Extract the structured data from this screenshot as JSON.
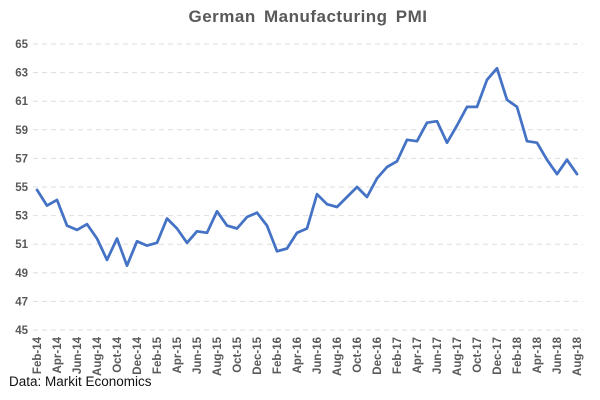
{
  "header": {
    "title": "German Manufacturing PMI"
  },
  "footer": {
    "source_note": "Data: Markit Economics"
  },
  "chart_data": {
    "type": "line",
    "title": "German Manufacturing PMI",
    "xlabel": "",
    "ylabel": "",
    "x": [
      "Feb-14",
      "Mar-14",
      "Apr-14",
      "May-14",
      "Jun-14",
      "Jul-14",
      "Aug-14",
      "Sep-14",
      "Oct-14",
      "Nov-14",
      "Dec-14",
      "Jan-15",
      "Feb-15",
      "Mar-15",
      "Apr-15",
      "May-15",
      "Jun-15",
      "Jul-15",
      "Aug-15",
      "Sep-15",
      "Oct-15",
      "Nov-15",
      "Dec-15",
      "Jan-16",
      "Feb-16",
      "Mar-16",
      "Apr-16",
      "May-16",
      "Jun-16",
      "Jul-16",
      "Aug-16",
      "Sep-16",
      "Oct-16",
      "Nov-16",
      "Dec-16",
      "Jan-17",
      "Feb-17",
      "Mar-17",
      "Apr-17",
      "May-17",
      "Jun-17",
      "Jul-17",
      "Aug-17",
      "Sep-17",
      "Oct-17",
      "Nov-17",
      "Dec-17",
      "Jan-18",
      "Feb-18",
      "Mar-18",
      "Apr-18",
      "May-18",
      "Jun-18",
      "Jul-18",
      "Aug-18"
    ],
    "series": [
      {
        "name": "German Manufacturing PMI",
        "values": [
          54.8,
          53.7,
          54.1,
          52.3,
          52.0,
          52.4,
          51.4,
          49.9,
          51.4,
          49.5,
          51.2,
          50.9,
          51.1,
          52.8,
          52.1,
          51.1,
          51.9,
          51.8,
          53.3,
          52.3,
          52.1,
          52.9,
          53.2,
          52.3,
          50.5,
          50.7,
          51.8,
          52.1,
          54.5,
          53.8,
          53.6,
          54.3,
          55.0,
          54.3,
          55.6,
          56.4,
          56.8,
          58.3,
          58.2,
          59.5,
          59.6,
          58.1,
          59.3,
          60.6,
          60.6,
          62.5,
          63.3,
          61.1,
          60.6,
          58.2,
          58.1,
          56.9,
          55.9,
          56.9,
          55.9
        ]
      }
    ],
    "ylim": [
      45,
      65
    ],
    "yticks": [
      45,
      47,
      49,
      51,
      53,
      55,
      57,
      59,
      61,
      63,
      65
    ],
    "xtick_every": 2,
    "legend": "none",
    "grid": "horizontal-dashed",
    "colors": {
      "line": "#4472C4",
      "gridline": "#DEDEDE",
      "axis_text": "#595959",
      "title_text": "#595959",
      "source_text": "#111111"
    }
  }
}
